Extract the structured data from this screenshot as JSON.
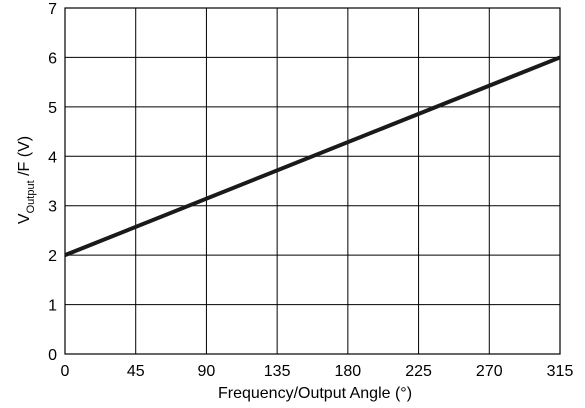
{
  "chart_data": {
    "type": "line",
    "title": "",
    "xlabel": "Frequency/Output Angle (°)",
    "ylabel": {
      "main": "V",
      "subscript": "Output",
      "suffix": " /F (V)"
    },
    "x_ticks": [
      "0",
      "45",
      "90",
      "135",
      "180",
      "225",
      "270",
      "315"
    ],
    "y_ticks": [
      "0",
      "1",
      "2",
      "3",
      "4",
      "5",
      "6",
      "7"
    ],
    "xlim": [
      0,
      315
    ],
    "ylim": [
      0,
      7
    ],
    "grid": true,
    "series": [
      {
        "x": [
          0,
          315
        ],
        "y": [
          2,
          6
        ]
      }
    ],
    "colors": {
      "line": "#1a1a1a",
      "grid": "#000000"
    }
  }
}
